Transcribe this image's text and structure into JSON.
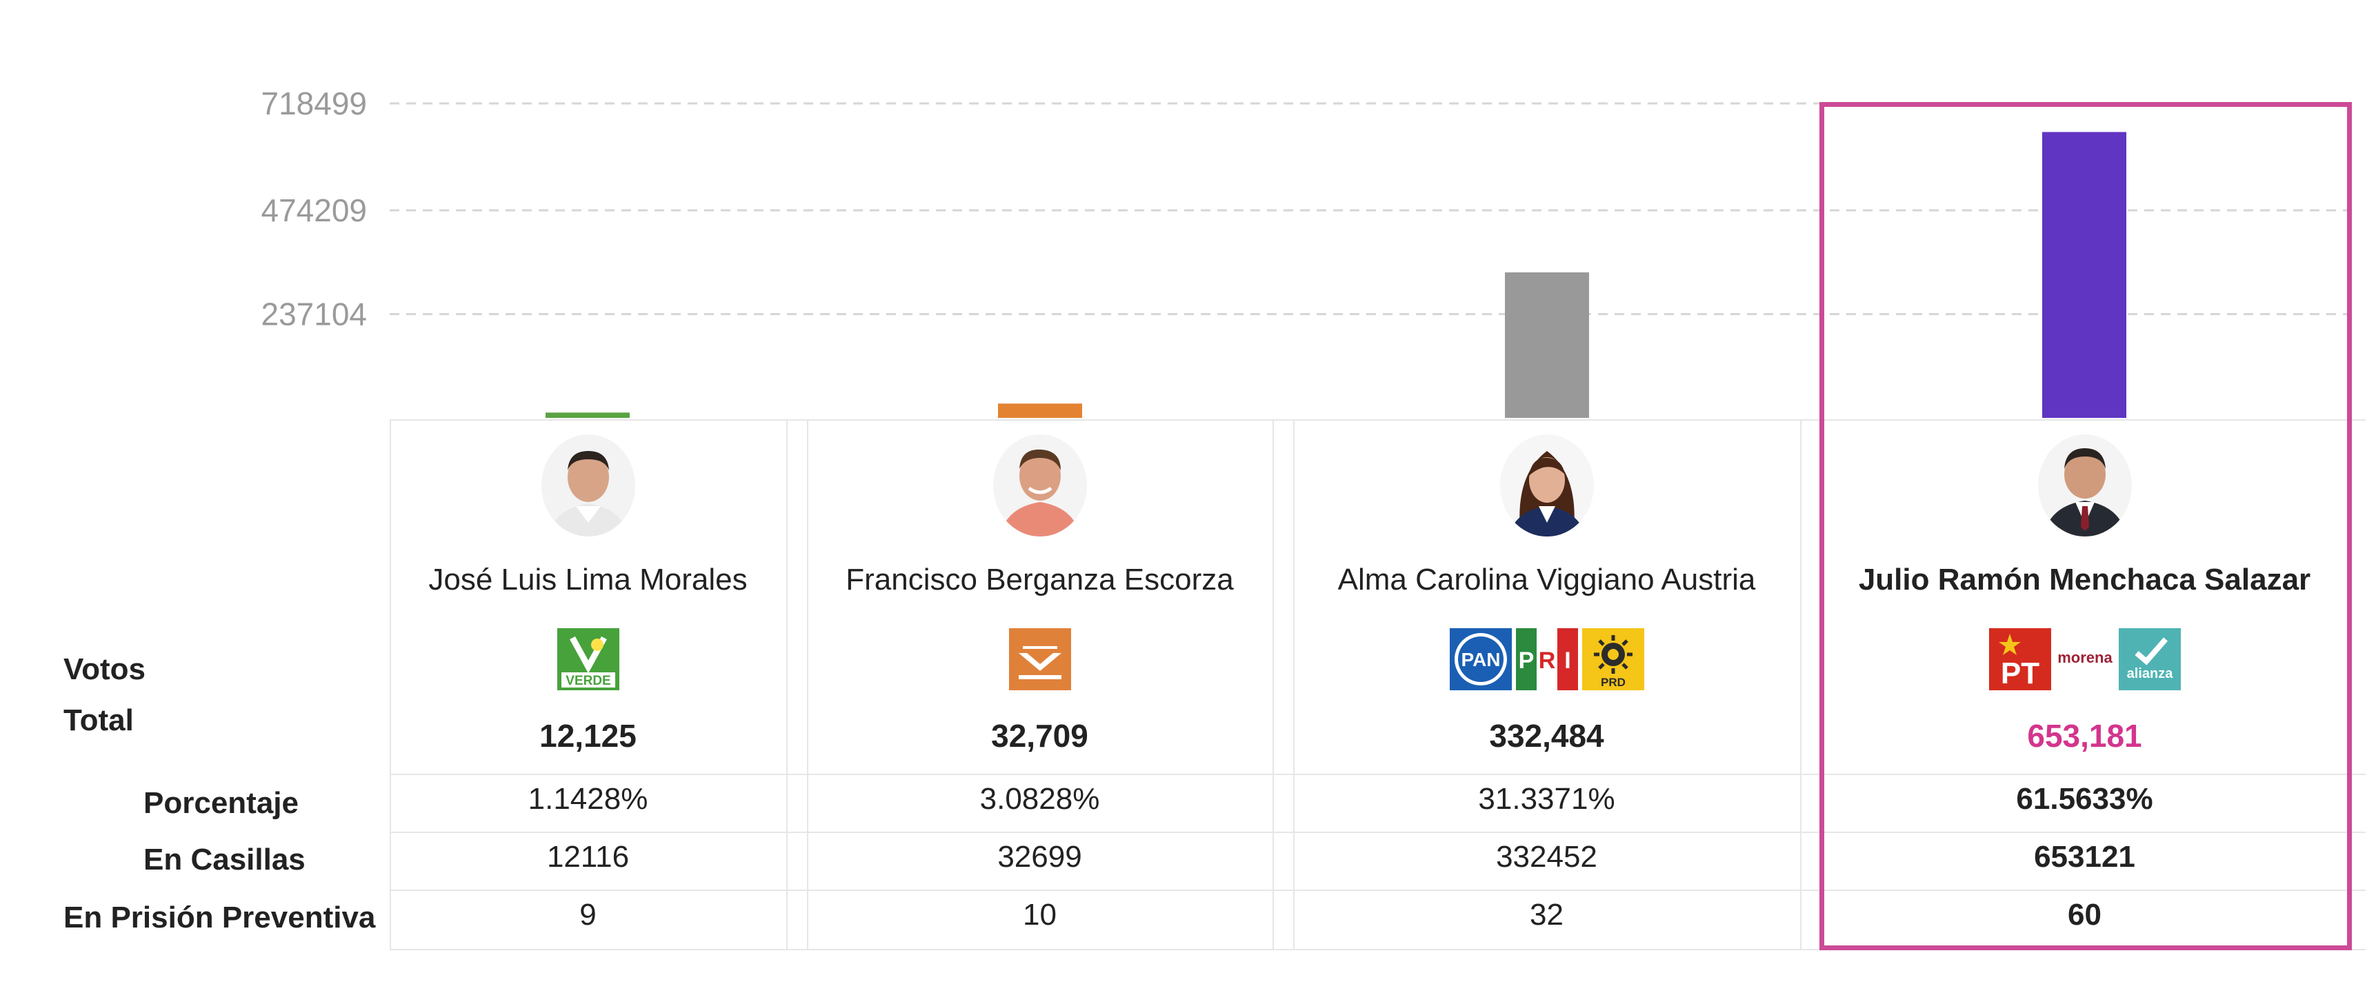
{
  "chart_data": {
    "type": "bar",
    "y_ticks": [
      "718499",
      "474209",
      "237104"
    ],
    "ylim": [
      0,
      718499
    ],
    "categories": [
      "José Luis Lima Morales",
      "Francisco Berganza Escorza",
      "Alma Carolina Viggiano Austria",
      "Julio Ramón Menchaca Salazar"
    ],
    "values": [
      12125,
      32709,
      332484,
      653181
    ],
    "bar_colors": [
      "#5aa342",
      "#e38332",
      "#999999",
      "#6035c2"
    ],
    "grid": true
  },
  "row_labels": {
    "votos": "Votos",
    "total": "Total",
    "porcentaje": "Porcentaje",
    "casillas": "En Casillas",
    "prision": "En Prisión Preventiva"
  },
  "candidates": [
    {
      "name": "José Luis Lima Morales",
      "party_logos": [
        "verde-logo"
      ],
      "total": "12,125",
      "porcentaje": "1.1428%",
      "casillas": "12116",
      "prision": "9"
    },
    {
      "name": "Francisco Berganza Escorza",
      "party_logos": [
        "movimiento-ciudadano-logo"
      ],
      "total": "32,709",
      "porcentaje": "3.0828%",
      "casillas": "32699",
      "prision": "10"
    },
    {
      "name": "Alma Carolina Viggiano Austria",
      "party_logos": [
        "pan-logo",
        "pri-logo",
        "prd-logo"
      ],
      "total": "332,484",
      "porcentaje": "31.3371%",
      "casillas": "332452",
      "prision": "32"
    },
    {
      "name": "Julio Ramón Menchaca Salazar",
      "party_logos": [
        "pt-logo",
        "morena-logo",
        "nueva-alianza-logo"
      ],
      "total": "653,181",
      "porcentaje": "61.5633%",
      "casillas": "653121",
      "prision": "60",
      "winner": true
    }
  ],
  "logo_text": {
    "verde": "VERDE",
    "pan": "PAN",
    "pri": [
      "P",
      "R",
      "I"
    ],
    "prd": "PRD",
    "pt": "PT",
    "morena": "morena",
    "alianza": "alianza"
  }
}
